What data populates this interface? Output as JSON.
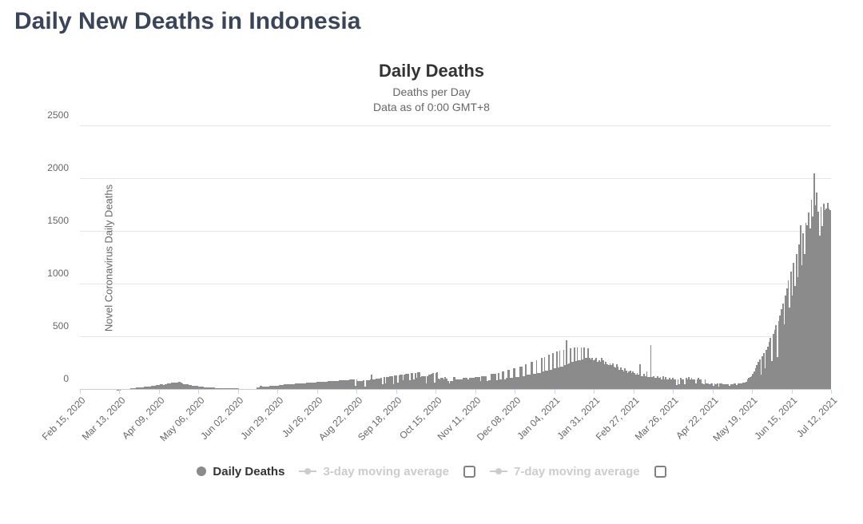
{
  "page": {
    "title": "Daily New Deaths in Indonesia"
  },
  "chart": {
    "type": "bar",
    "title": "Daily Deaths",
    "subtitle_line1": "Deaths per Day",
    "subtitle_line2": "Data as of 0:00 GMT+8",
    "y_axis_label": "Novel Coronavirus Daily Deaths",
    "background_color": "#ffffff",
    "grid_color": "#e6e6e6",
    "baseline_color": "#cccccc",
    "title_fontsize": 22,
    "subtitle_fontsize": 14,
    "axis_label_fontsize": 13,
    "tick_fontsize": 12,
    "ylim": [
      0,
      2500
    ],
    "ytick_step": 500,
    "yticks": [
      0,
      500,
      1000,
      1500,
      2000,
      2500
    ],
    "bar_color": "#8b8b8b",
    "bar_width_ratio": 1.0,
    "page_title_color": "#3b4559",
    "subtitle_color": "#666666",
    "tick_label_color": "#666666",
    "xtick_rotation_deg": -45,
    "xticks": [
      "Feb 15, 2020",
      "Mar 13, 2020",
      "Apr 09, 2020",
      "May 06, 2020",
      "Jun 02, 2020",
      "Jun 29, 2020",
      "Jul 26, 2020",
      "Aug 22, 2020",
      "Sep 18, 2020",
      "Oct 15, 2020",
      "Nov 11, 2020",
      "Dec 08, 2020",
      "Jan 04, 2021",
      "Jan 31, 2021",
      "Feb 27, 2021",
      "Mar 26, 2021",
      "Apr 22, 2021",
      "May 19, 2021",
      "Jun 15, 2021",
      "Jul 12, 2021"
    ],
    "xtick_count": 20,
    "values": [
      0,
      0,
      0,
      0,
      0,
      0,
      0,
      0,
      0,
      0,
      0,
      0,
      0,
      0,
      0,
      0,
      0,
      0,
      0,
      0,
      0,
      0,
      0,
      0,
      0,
      0,
      0,
      1,
      1,
      1,
      5,
      5,
      5,
      5,
      6,
      7,
      9,
      10,
      11,
      15,
      12,
      18,
      21,
      20,
      22,
      24,
      20,
      27,
      25,
      29,
      26,
      30,
      33,
      35,
      38,
      40,
      42,
      45,
      47,
      50,
      48,
      46,
      55,
      52,
      58,
      60,
      62,
      65,
      68,
      64,
      70,
      66,
      72,
      74,
      63,
      60,
      55,
      52,
      50,
      48,
      45,
      42,
      40,
      38,
      36,
      35,
      33,
      30,
      28,
      26,
      25,
      23,
      22,
      21,
      20,
      20,
      19,
      18,
      18,
      17,
      16,
      16,
      15,
      15,
      14,
      14,
      13,
      13,
      12,
      12,
      11,
      11,
      10,
      10,
      10,
      10,
      10,
      9,
      9,
      9,
      9,
      9,
      9,
      9,
      9,
      9,
      9,
      9,
      9,
      9,
      23,
      23,
      33,
      33,
      30,
      30,
      30,
      30,
      30,
      36,
      36,
      40,
      40,
      40,
      40,
      40,
      44,
      44,
      44,
      44,
      48,
      48,
      48,
      48,
      52,
      52,
      52,
      52,
      56,
      56,
      56,
      56,
      60,
      60,
      60,
      60,
      64,
      64,
      64,
      64,
      68,
      68,
      68,
      68,
      72,
      72,
      72,
      72,
      76,
      76,
      76,
      76,
      80,
      80,
      80,
      80,
      84,
      84,
      84,
      84,
      88,
      88,
      88,
      88,
      92,
      92,
      92,
      92,
      96,
      96,
      96,
      100,
      40,
      100,
      80,
      80,
      84,
      84,
      88,
      30,
      88,
      92,
      92,
      96,
      139,
      100,
      100,
      104,
      104,
      108,
      108,
      112,
      50,
      116,
      60,
      120,
      120,
      124,
      124,
      128,
      50,
      132,
      132,
      70,
      136,
      140,
      140,
      90,
      144,
      148,
      148,
      152,
      90,
      156,
      156,
      100,
      160,
      110,
      164,
      168,
      120,
      130,
      130,
      130,
      60,
      130,
      140,
      145,
      150,
      155,
      65,
      160,
      165,
      105,
      100,
      110,
      110,
      95,
      118,
      101,
      84,
      60,
      80,
      80,
      120,
      120,
      100,
      100,
      100,
      100,
      100,
      110,
      110,
      110,
      110,
      100,
      110,
      110,
      110,
      110,
      120,
      120,
      120,
      120,
      80,
      130,
      130,
      130,
      130,
      80,
      90,
      90,
      150,
      150,
      150,
      150,
      90,
      160,
      100,
      100,
      170,
      170,
      100,
      110,
      190,
      190,
      110,
      110,
      200,
      200,
      120,
      120,
      120,
      220,
      220,
      130,
      130,
      240,
      140,
      140,
      140,
      260,
      260,
      150,
      150,
      280,
      160,
      160,
      160,
      300,
      170,
      310,
      180,
      180,
      330,
      190,
      190,
      350,
      200,
      200,
      360,
      210,
      370,
      220,
      220,
      380,
      230,
      470,
      240,
      250,
      390,
      260,
      260,
      400,
      270,
      400,
      280,
      280,
      400,
      290,
      400,
      300,
      300,
      390,
      300,
      290,
      300,
      280,
      290,
      300,
      260,
      280,
      260,
      300,
      280,
      240,
      260,
      240,
      230,
      250,
      230,
      250,
      220,
      210,
      240,
      220,
      190,
      210,
      190,
      170,
      200,
      180,
      160,
      170,
      180,
      160,
      170,
      160,
      140,
      160,
      140,
      240,
      130,
      130,
      150,
      130,
      170,
      120,
      120,
      420,
      120,
      130,
      110,
      110,
      130,
      110,
      120,
      100,
      130,
      100,
      120,
      100,
      100,
      110,
      100,
      110,
      100,
      100,
      46,
      100,
      48,
      110,
      100,
      100,
      54,
      110,
      100,
      120,
      100,
      110,
      100,
      100,
      60,
      100,
      110,
      100,
      100,
      62,
      54,
      100,
      61,
      60,
      48,
      58,
      58,
      40,
      56,
      48,
      56,
      30,
      56,
      56,
      54,
      54,
      54,
      52,
      52,
      40,
      54,
      54,
      56,
      56,
      46,
      58,
      60,
      60,
      62,
      64,
      68,
      72,
      100,
      110,
      120,
      130,
      150,
      170,
      200,
      230,
      260,
      290,
      140,
      320,
      350,
      200,
      380,
      410,
      450,
      490,
      270,
      530,
      570,
      610,
      310,
      650,
      700,
      760,
      820,
      620,
      890,
      960,
      1040,
      780,
      1120,
      890,
      1200,
      980,
      1290,
      1070,
      1380,
      1560,
      1180,
      1480,
      1290,
      1580,
      1560,
      1680,
      1530,
      1800,
      1640,
      2050,
      1750,
      1870,
      1690,
      1460,
      1730,
      1550,
      1760,
      1700,
      1720,
      1770,
      1720,
      1700
    ]
  },
  "legend": {
    "items": [
      {
        "label": "Daily Deaths",
        "active": true,
        "type": "dot"
      },
      {
        "label": "3-day moving average",
        "active": false,
        "type": "line-dot",
        "has_checkbox": true
      },
      {
        "label": "7-day moving average",
        "active": false,
        "type": "line-dot",
        "has_checkbox": true
      }
    ]
  }
}
